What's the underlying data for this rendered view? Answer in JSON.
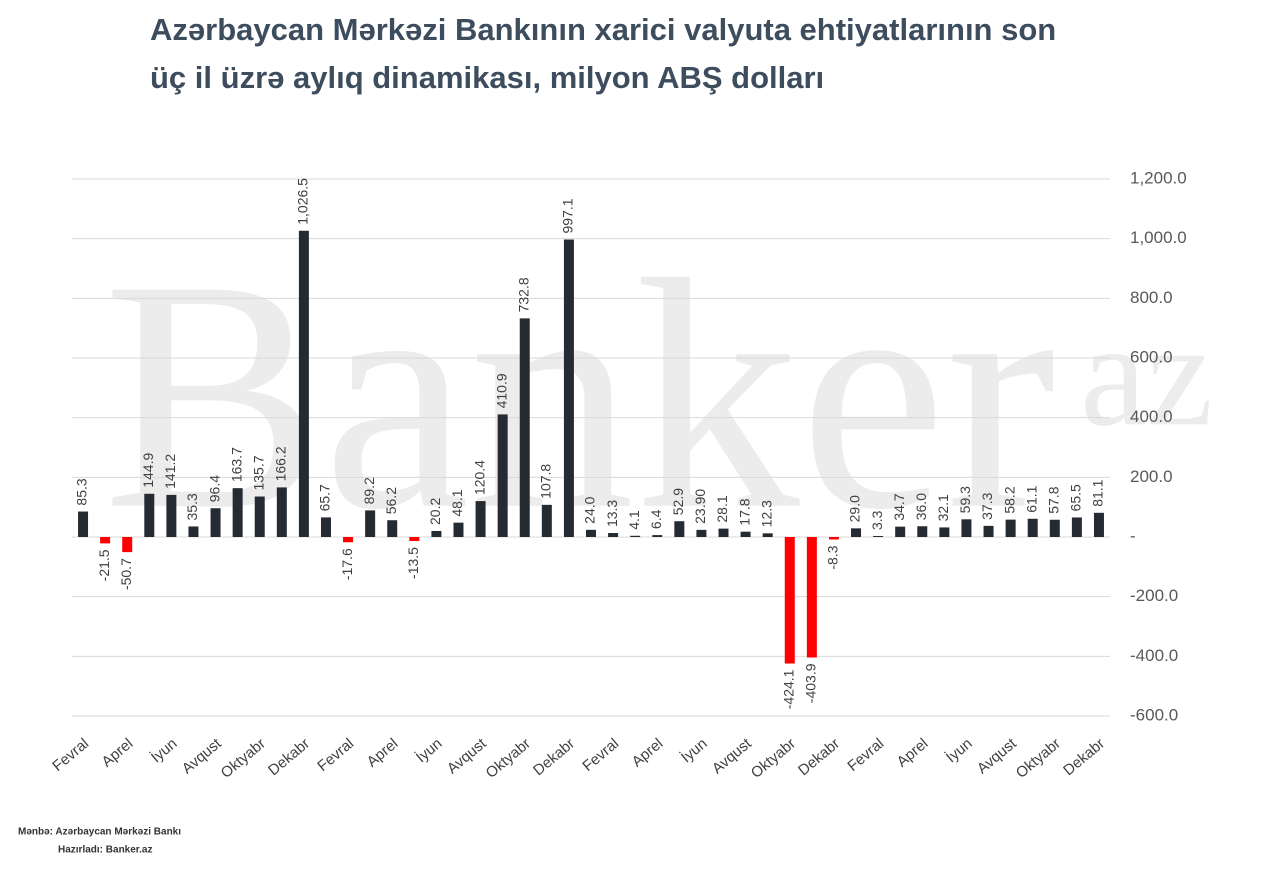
{
  "chart_data": {
    "type": "bar",
    "title": [
      "Azərbaycan Mərkəzi Bankının xarici valyuta ehtiyatlarının son",
      "üç il üzrə aylıq dinamikası, milyon ABŞ dolları"
    ],
    "watermark": "Banker",
    "watermark_sup": "az",
    "source": "Mənbə: Azərbaycan Mərkəzi Bankı",
    "prepared_by": "Hazırladı: Banker.az",
    "categories": [
      "Fevral",
      null,
      "Aprel",
      null,
      "İyun",
      null,
      "Avqust",
      null,
      "Oktyabr",
      null,
      "Dekabr",
      null,
      "Fevral",
      null,
      "Aprel",
      null,
      "İyun",
      null,
      "Avqust",
      null,
      "Oktyabr",
      null,
      "Dekabr",
      null,
      "Fevral",
      null,
      "Aprel",
      null,
      "İyun",
      null,
      "Avqust",
      null,
      "Oktyabr",
      null,
      "Dekabr",
      null,
      "Fevral",
      null,
      "Aprel",
      null,
      "İyun",
      null,
      "Avqust",
      null,
      "Oktyabr",
      null,
      "Dekabr"
    ],
    "values": [
      85.3,
      -21.5,
      -50.7,
      144.9,
      141.2,
      35.3,
      96.4,
      163.7,
      135.7,
      166.2,
      1026.5,
      65.7,
      -17.6,
      89.2,
      56.2,
      -13.5,
      20.2,
      48.1,
      120.4,
      410.9,
      732.8,
      107.8,
      997.1,
      24.0,
      13.3,
      4.1,
      6.4,
      52.9,
      23.9,
      28.1,
      17.8,
      12.3,
      -424.1,
      -403.9,
      -8.3,
      29.0,
      3.3,
      34.7,
      36.0,
      32.1,
      59.3,
      37.3,
      58.2,
      61.1,
      57.8,
      65.5,
      81.1
    ],
    "value_labels": [
      "85.3",
      "-21.5",
      "-50.7",
      "144.9",
      "141.2",
      "35.3",
      "96.4",
      "163.7",
      "135.7",
      "166.2",
      "1,026.5",
      "65.7",
      "-17.6",
      "89.2",
      "56.2",
      "-13.5",
      "20.2",
      "48.1",
      "120.4",
      "410.9",
      "732.8",
      "107.8",
      "997.1",
      "24.0",
      "13.3",
      "4.1",
      "6.4",
      "52.9",
      "23.90",
      "28.1",
      "17.8",
      "12.3",
      "-424.1",
      "-403.9",
      "-8.3",
      "29.0",
      "3.3",
      "34.7",
      "36.0",
      "32.1",
      "59.3",
      "37.3",
      "58.2",
      "61.1",
      "57.8",
      "65.5",
      "81.1"
    ],
    "color": "#252b33",
    "negative_color": "#ff0000",
    "ylim": [
      -600,
      1200
    ],
    "yticks": [
      {
        "value": -600,
        "label": "-600.0"
      },
      {
        "value": -400,
        "label": "-400.0"
      },
      {
        "value": -200,
        "label": "-200.0"
      },
      {
        "value": 0,
        "label": "-"
      },
      {
        "value": 200,
        "label": "200.0"
      },
      {
        "value": 400,
        "label": "400.0"
      },
      {
        "value": 600,
        "label": "600.0"
      },
      {
        "value": 800,
        "label": "800.0"
      },
      {
        "value": 1000,
        "label": "1,000.0"
      },
      {
        "value": 1200,
        "label": "1,200.0"
      }
    ],
    "grid": true
  }
}
